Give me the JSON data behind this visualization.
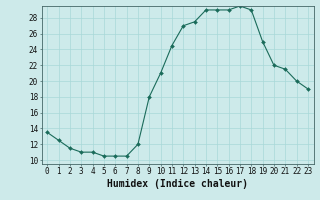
{
  "x": [
    0,
    1,
    2,
    3,
    4,
    5,
    6,
    7,
    8,
    9,
    10,
    11,
    12,
    13,
    14,
    15,
    16,
    17,
    18,
    19,
    20,
    21,
    22,
    23
  ],
  "y": [
    13.5,
    12.5,
    11.5,
    11.0,
    11.0,
    10.5,
    10.5,
    10.5,
    12.0,
    18.0,
    21.0,
    24.5,
    27.0,
    27.5,
    29.0,
    29.0,
    29.0,
    29.5,
    29.0,
    25.0,
    22.0,
    21.5,
    20.0,
    19.0
  ],
  "xlabel": "Humidex (Indice chaleur)",
  "ylim": [
    9.5,
    29.5
  ],
  "yticks": [
    10,
    12,
    14,
    16,
    18,
    20,
    22,
    24,
    26,
    28
  ],
  "xticks": [
    0,
    1,
    2,
    3,
    4,
    5,
    6,
    7,
    8,
    9,
    10,
    11,
    12,
    13,
    14,
    15,
    16,
    17,
    18,
    19,
    20,
    21,
    22,
    23
  ],
  "bg_color": "#cdeaea",
  "line_color": "#1a6b5a",
  "grid_color": "#a8d8d8",
  "tick_label_fontsize": 5.5,
  "xlabel_fontsize": 7.0
}
